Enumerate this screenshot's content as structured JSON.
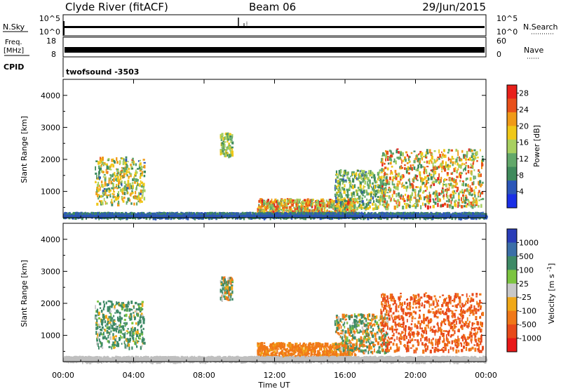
{
  "header": {
    "station": "Clyde River (fitACF)",
    "beam": "Beam 06",
    "date": "29/Jun/2015"
  },
  "top_panels": {
    "nsky_label": "N.Sky",
    "nsky_ticks": [
      "10^5",
      "10^0"
    ],
    "nsearch_label": "N.Search",
    "nsearch_ticks": [
      "10^5",
      "10^0"
    ],
    "freq_label_top": "Freq.",
    "freq_label_bottom": "[MHz]",
    "freq_ticks": [
      "18",
      "8"
    ],
    "nave_label": "Nave",
    "nave_ticks": [
      "60",
      "0"
    ],
    "cpid_label": "CPID",
    "cpid_value": "twofsound  -3503"
  },
  "colors": {
    "power_scale": [
      "#1a2fe6",
      "#2b56b8",
      "#3f8a5c",
      "#62a86a",
      "#a8d060",
      "#f0c818",
      "#f09a18",
      "#e8501a",
      "#e8201a"
    ],
    "velocity_scale": [
      "#2a3db8",
      "#3b6fa8",
      "#3e8a66",
      "#7cc440",
      "#c8c8c8",
      "#f0a818",
      "#f07818",
      "#e84a1a",
      "#e81818"
    ],
    "ground_scatter": "#bfbfbf"
  },
  "chart_data": [
    {
      "type": "heatmap",
      "title": "",
      "xlabel": "",
      "ylabel": "Slant Range [km]",
      "x_range_hours": [
        0,
        24
      ],
      "ylim": [
        180,
        4500
      ],
      "y_ticks": [
        "1000",
        "2000",
        "3000",
        "4000"
      ],
      "colorbar": {
        "label": "Power [dB]",
        "ticks": [
          "4",
          "8",
          "12",
          "16",
          "20",
          "24",
          "28"
        ],
        "range": [
          0,
          30
        ]
      },
      "scatter_regions": [
        {
          "t_start": 1.8,
          "t_end": 4.6,
          "r_min": 600,
          "r_max": 2050,
          "value_range": [
            6,
            24
          ]
        },
        {
          "t_start": 8.9,
          "t_end": 9.6,
          "r_min": 2100,
          "r_max": 2800,
          "value_range": [
            8,
            20
          ]
        },
        {
          "t_start": 11.0,
          "t_end": 16.6,
          "r_min": 250,
          "r_max": 750,
          "value_range": [
            10,
            28
          ]
        },
        {
          "t_start": 15.4,
          "t_end": 18.4,
          "r_min": 450,
          "r_max": 1650,
          "value_range": [
            6,
            20
          ]
        },
        {
          "t_start": 18.0,
          "t_end": 23.8,
          "r_min": 500,
          "r_max": 2300,
          "value_range": [
            8,
            28
          ]
        },
        {
          "t_start": 0.0,
          "t_end": 24.0,
          "r_min": 180,
          "r_max": 320,
          "value_range": [
            2,
            14
          ]
        }
      ]
    },
    {
      "type": "heatmap",
      "title": "",
      "xlabel": "Time UT",
      "ylabel": "Slant Range [km]",
      "x_range_hours": [
        0,
        24
      ],
      "x_ticks": [
        "00:00",
        "04:00",
        "08:00",
        "12:00",
        "16:00",
        "20:00",
        "00:00"
      ],
      "ylim": [
        180,
        4500
      ],
      "y_ticks": [
        "1000",
        "2000",
        "3000",
        "4000"
      ],
      "colorbar": {
        "label": "Velocity [m s^-1]",
        "ticks": [
          "1000",
          "500",
          "100",
          "25",
          "-25",
          "-100",
          "-500",
          "-1000"
        ]
      },
      "scatter_regions": [
        {
          "t_start": 1.8,
          "t_end": 4.6,
          "r_min": 600,
          "r_max": 2050,
          "value_range": [
            -100,
            500
          ]
        },
        {
          "t_start": 8.9,
          "t_end": 9.6,
          "r_min": 2100,
          "r_max": 2800,
          "value_range": [
            -300,
            300
          ]
        },
        {
          "t_start": 11.0,
          "t_end": 16.6,
          "r_min": 250,
          "r_max": 750,
          "value_range": [
            -500,
            -25
          ]
        },
        {
          "t_start": 15.4,
          "t_end": 18.4,
          "r_min": 450,
          "r_max": 1650,
          "value_range": [
            -300,
            400
          ]
        },
        {
          "t_start": 18.0,
          "t_end": 23.8,
          "r_min": 500,
          "r_max": 2300,
          "value_range": [
            -1000,
            -100
          ]
        },
        {
          "t_start": 0.0,
          "t_end": 24.0,
          "r_min": 180,
          "r_max": 320,
          "value_range": [
            -25,
            25
          ]
        }
      ]
    }
  ]
}
